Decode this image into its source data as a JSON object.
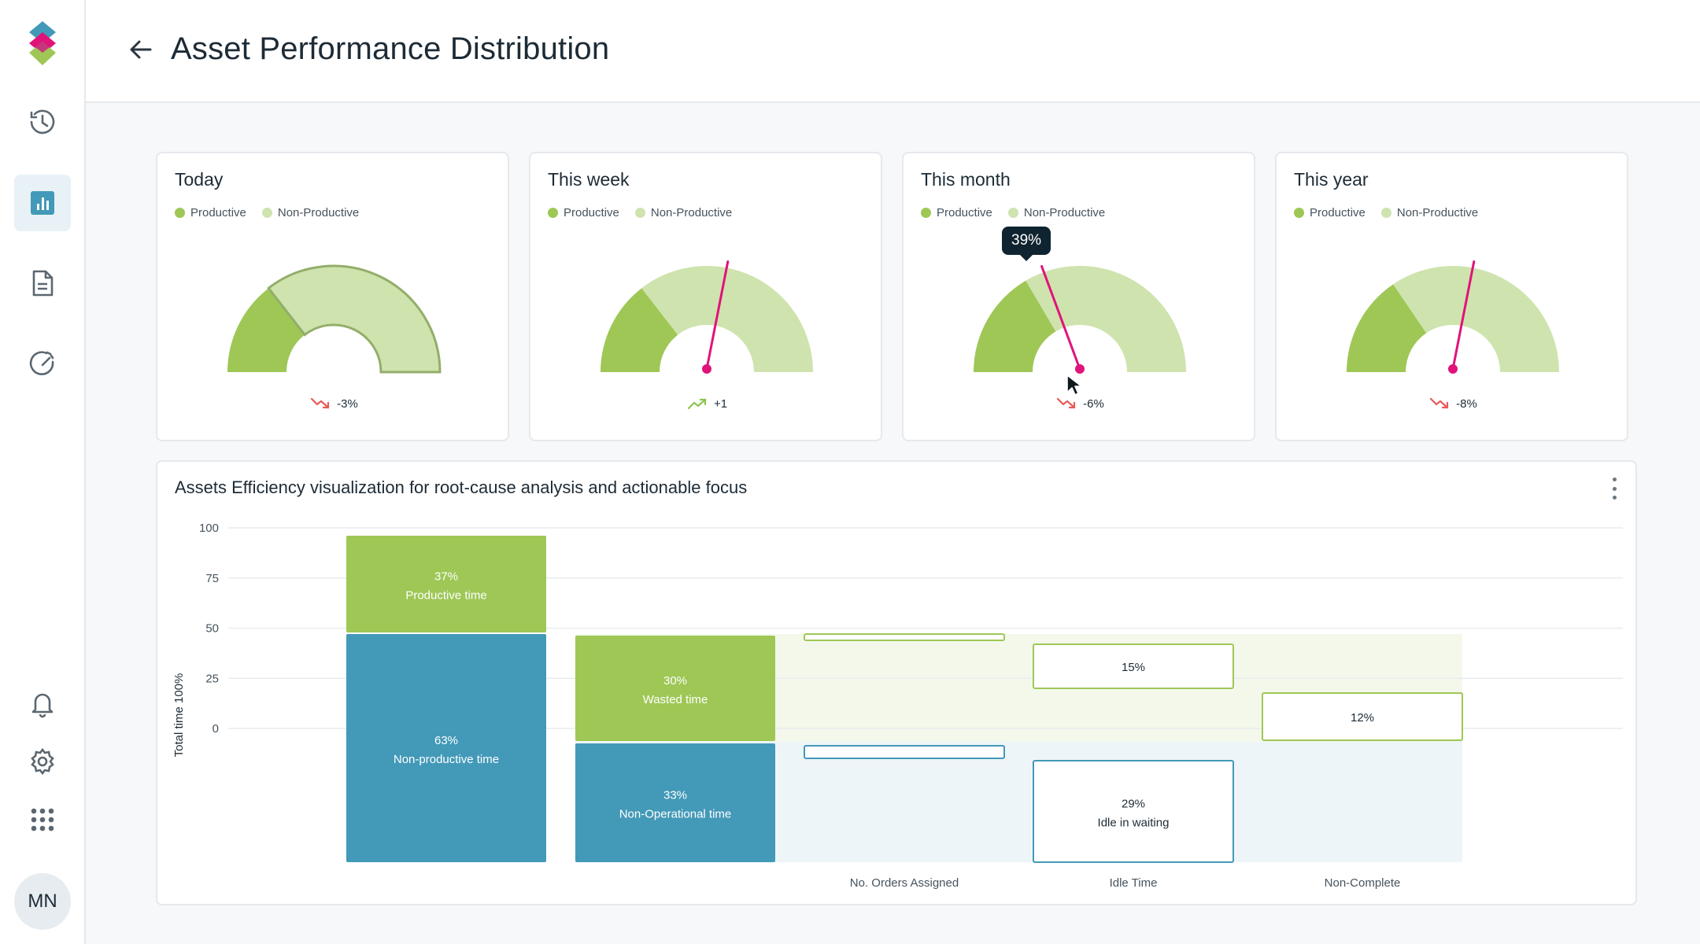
{
  "page": {
    "title": "Asset Performance Distribution"
  },
  "sidebar": {
    "items": [
      {
        "icon": "clock-history-icon",
        "active": false
      },
      {
        "icon": "bar-chart-icon",
        "active": true
      },
      {
        "icon": "document-icon",
        "active": false
      },
      {
        "icon": "gauge-speed-icon",
        "active": false
      }
    ],
    "bottom_items": [
      {
        "icon": "bell-icon"
      },
      {
        "icon": "gear-icon"
      },
      {
        "icon": "apps-grid-icon"
      }
    ],
    "avatar_initials": "MN"
  },
  "colors": {
    "productive": "#9ec756",
    "non_productive": "#cfe3ae",
    "non_productive_blue": "#4399b8",
    "needle": "#e0137b",
    "trend_down": "#e85a5a",
    "trend_up": "#8ec44f"
  },
  "legend": {
    "productive": "Productive",
    "non_productive": "Non-Productive"
  },
  "gauges": [
    {
      "title": "Today",
      "productive_pct": 29,
      "needle_pct": null,
      "trend": "-3%",
      "trend_dir": "down",
      "tooltip": null
    },
    {
      "title": "This week",
      "productive_pct": 29,
      "needle_pct": 56,
      "trend": "+1",
      "trend_dir": "up",
      "tooltip": null
    },
    {
      "title": "This month",
      "productive_pct": 33,
      "needle_pct": 39,
      "trend": "-6%",
      "trend_dir": "down",
      "tooltip": "39%"
    },
    {
      "title": "This year",
      "productive_pct": 31,
      "needle_pct": 56,
      "trend": "-8%",
      "trend_dir": "down",
      "tooltip": null
    }
  ],
  "chart": {
    "title": "Assets Efficiency visualization for root-cause analysis and actionable focus",
    "ylabel": "Total time 100%"
  },
  "chart_data": {
    "type": "bar",
    "ylabel": "Total time 100%",
    "yticks": [
      100,
      75,
      50,
      25,
      0
    ],
    "categories": [
      "",
      "",
      "No. Orders Assigned",
      "Idle Time",
      "Non-Complete"
    ],
    "segments": [
      {
        "category_index": 0,
        "pct_label": "37%",
        "label": "Productive time",
        "style": "productive"
      },
      {
        "category_index": 0,
        "pct_label": "63%",
        "label": "Non-productive time",
        "style": "blue"
      },
      {
        "category_index": 1,
        "pct_label": "30%",
        "label": "Wasted time",
        "style": "productive"
      },
      {
        "category_index": 1,
        "pct_label": "33%",
        "label": "Non-Operational time",
        "style": "blue"
      },
      {
        "category_index": 3,
        "pct_label": "15%",
        "label": "",
        "style": "outline-green"
      },
      {
        "category_index": 3,
        "pct_label": "29%",
        "label": "Idle in waiting",
        "style": "outline-blue"
      },
      {
        "category_index": 4,
        "pct_label": "12%",
        "label": "",
        "style": "outline-green"
      }
    ]
  }
}
